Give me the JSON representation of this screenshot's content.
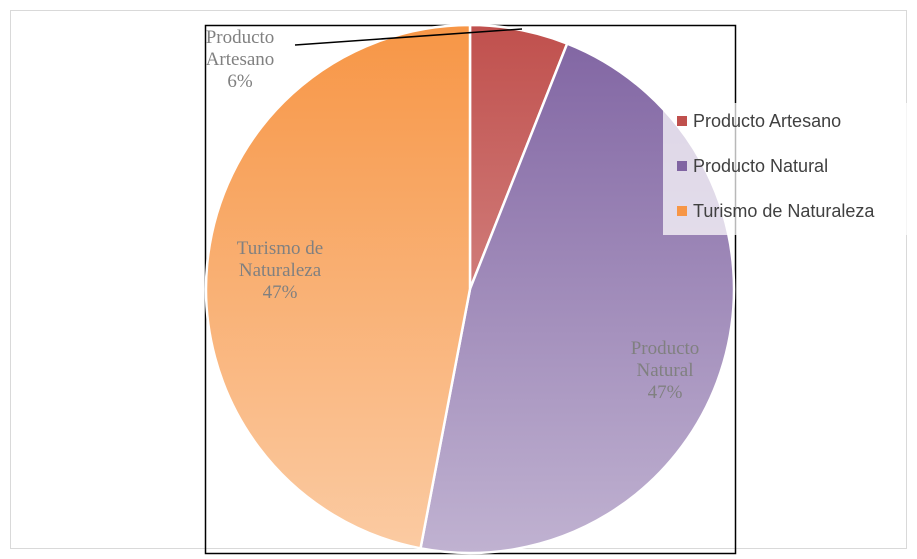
{
  "chart_data": {
    "type": "pie",
    "categories": [
      "Producto Artesano",
      "Producto Natural",
      "Turismo de Naturaleza"
    ],
    "values": [
      6,
      47,
      47
    ],
    "value_labels": [
      "6%",
      "47%",
      "47%"
    ],
    "colors": [
      "#c0504d",
      "#8064a2",
      "#f79646"
    ],
    "legend": "right"
  }
}
